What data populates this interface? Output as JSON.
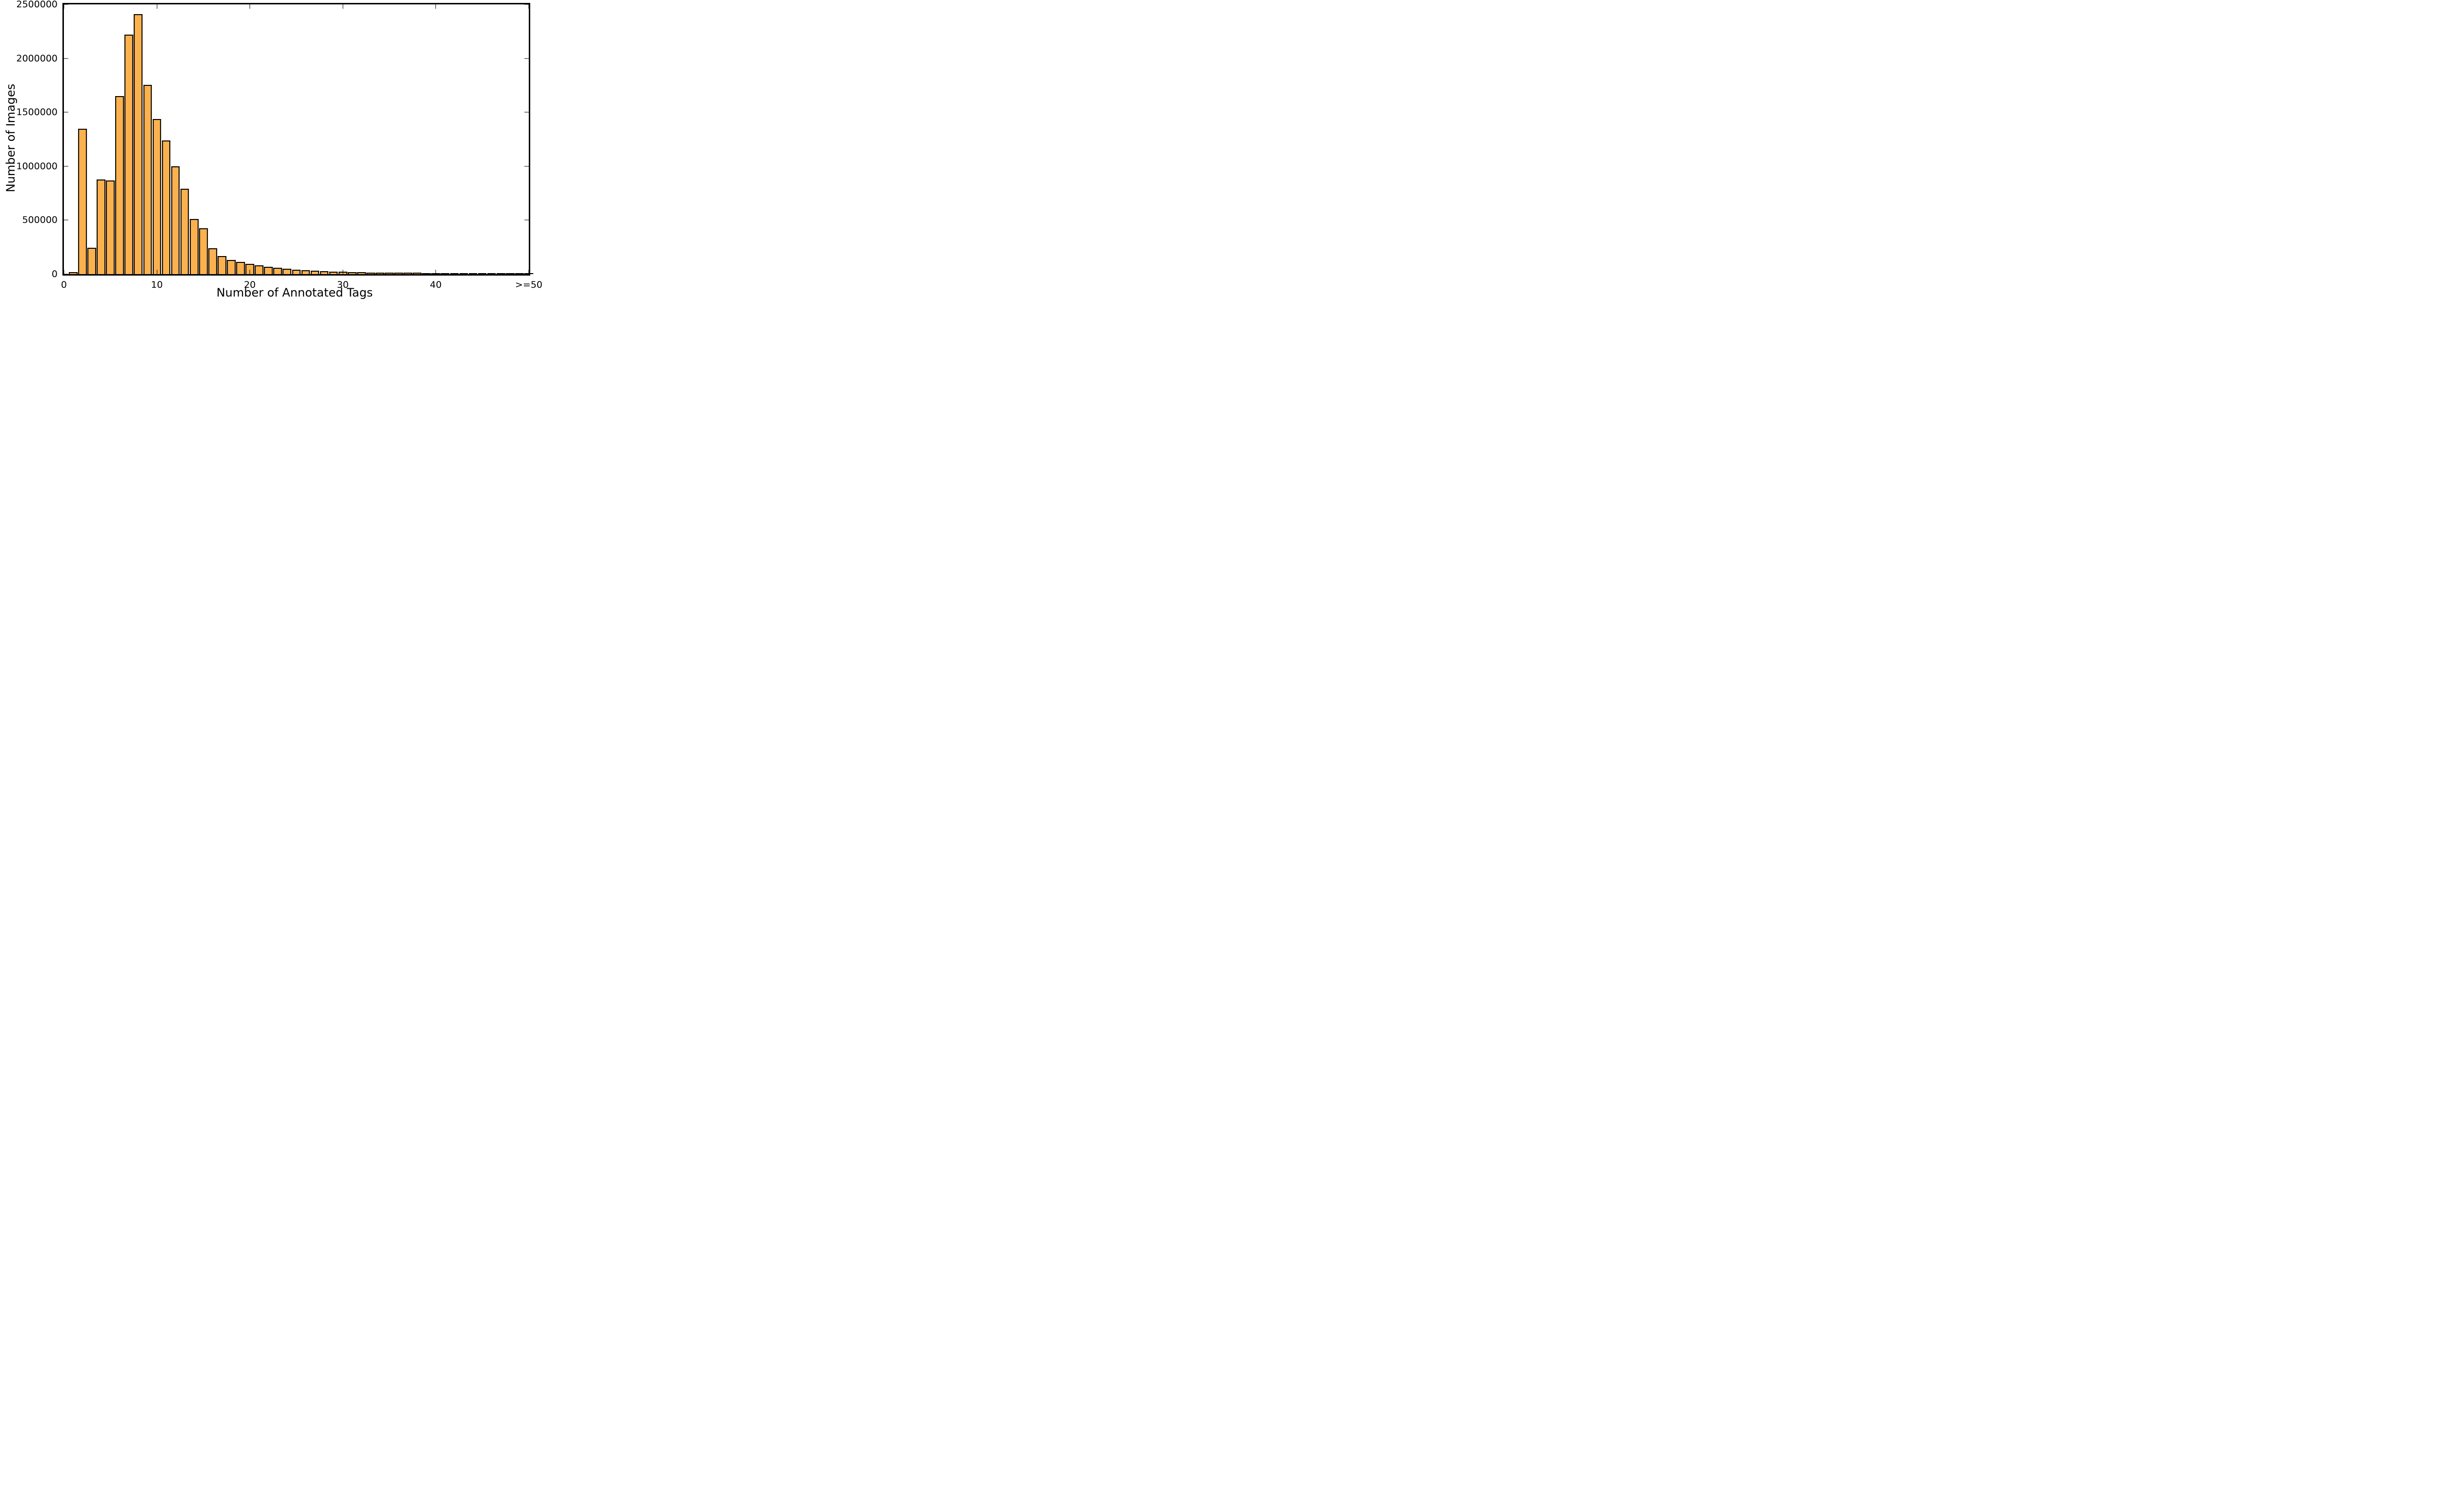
{
  "figure": {
    "background_color": "#FFFFFF",
    "axis_color": "#000000",
    "text_color": "#000000"
  },
  "chart_data": {
    "type": "bar",
    "title": "",
    "xlabel": "Number of Annotated Tags",
    "ylabel": "Number of Images",
    "xlim": [
      0,
      50
    ],
    "ylim": [
      0,
      2500000
    ],
    "grid": false,
    "legend_position": "none",
    "bar_color": "#FBB14E",
    "bar_edge_color": "#000000",
    "bar_width_units": 0.72,
    "tick_direction": "in",
    "x": [
      1,
      2,
      3,
      4,
      5,
      6,
      7,
      8,
      9,
      10,
      11,
      12,
      13,
      14,
      15,
      16,
      17,
      18,
      19,
      20,
      21,
      22,
      23,
      24,
      25,
      26,
      27,
      28,
      29,
      30,
      31,
      32,
      33,
      34,
      35,
      36,
      37,
      38,
      39,
      40,
      41,
      42,
      43,
      44,
      45,
      46,
      47,
      48,
      49,
      50
    ],
    "values": [
      10000,
      1340000,
      237000,
      870000,
      860000,
      1640000,
      2210000,
      2400000,
      1745000,
      1430000,
      1230000,
      990000,
      780000,
      500000,
      415000,
      232000,
      160000,
      121000,
      103000,
      88000,
      72000,
      59000,
      48000,
      40000,
      33000,
      27000,
      22000,
      18000,
      15000,
      12500,
      10000,
      8200,
      6800,
      5600,
      4600,
      3800,
      3100,
      2600,
      2100,
      1800,
      1500,
      1200,
      1000,
      900,
      750,
      650,
      550,
      500,
      450,
      400
    ],
    "xticks": {
      "positions": [
        0,
        10,
        20,
        30,
        40,
        50
      ],
      "labels": [
        "0",
        "10",
        "20",
        "30",
        "40",
        ">=50"
      ]
    },
    "yticks": {
      "positions": [
        0,
        500000,
        1000000,
        1500000,
        2000000,
        2500000
      ],
      "labels": [
        "0",
        "500000",
        "1000000",
        "1500000",
        "2000000",
        "2500000"
      ]
    }
  }
}
